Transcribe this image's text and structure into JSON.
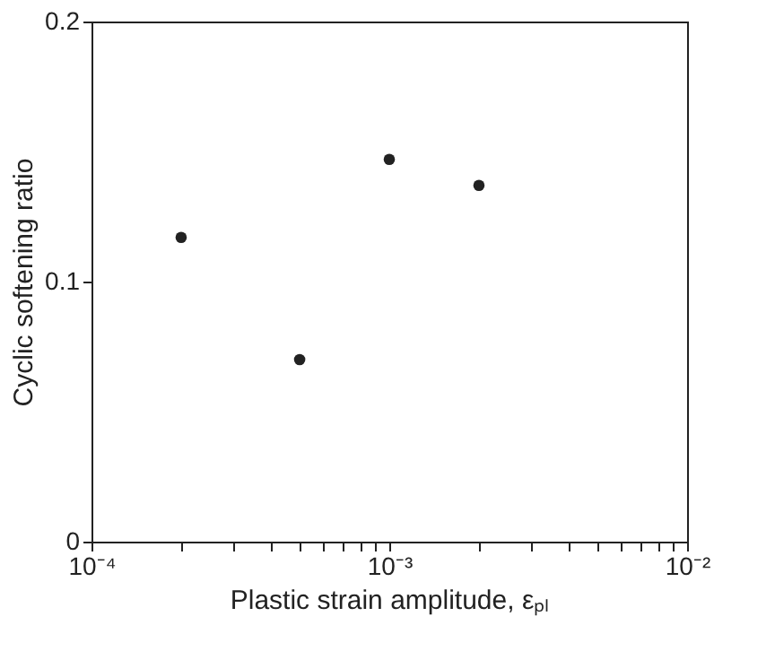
{
  "chart_data": {
    "type": "scatter",
    "xlabel": "Plastic strain amplitude, εₚₗ",
    "ylabel": "Cyclic softening ratio",
    "x": [
      0.0002,
      0.0005,
      0.001,
      0.002
    ],
    "values": [
      0.117,
      0.07,
      0.147,
      0.137
    ],
    "color": "#222222",
    "marker": "circle",
    "log": "x",
    "grid": false,
    "xlim": [
      0.0001,
      0.01
    ],
    "ylim": [
      0,
      0.2
    ],
    "xticks": [
      {
        "value": 0.0001,
        "label": "10⁻⁴"
      },
      {
        "value": 0.0002,
        "label": null
      },
      {
        "value": 0.0003,
        "label": null
      },
      {
        "value": 0.0004,
        "label": null
      },
      {
        "value": 0.0005,
        "label": null
      },
      {
        "value": 0.0006,
        "label": null
      },
      {
        "value": 0.0007,
        "label": null
      },
      {
        "value": 0.0008,
        "label": null
      },
      {
        "value": 0.0009,
        "label": null
      },
      {
        "value": 0.001,
        "label": "10⁻³"
      },
      {
        "value": 0.002,
        "label": null
      },
      {
        "value": 0.003,
        "label": null
      },
      {
        "value": 0.004,
        "label": null
      },
      {
        "value": 0.005,
        "label": null
      },
      {
        "value": 0.006,
        "label": null
      },
      {
        "value": 0.007,
        "label": null
      },
      {
        "value": 0.008,
        "label": null
      },
      {
        "value": 0.009,
        "label": null
      },
      {
        "value": 0.01,
        "label": "10⁻²"
      }
    ],
    "yticks": [
      0,
      0.1,
      0.2
    ]
  }
}
